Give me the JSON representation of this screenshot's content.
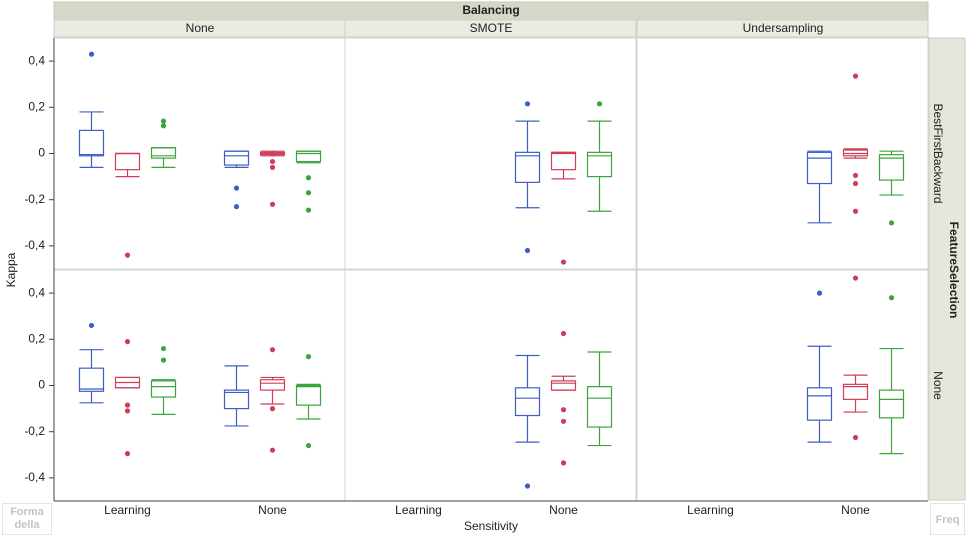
{
  "chart_data": {
    "type": "box",
    "title": "Balancing",
    "columns": [
      "None",
      "SMOTE",
      "Undersampling"
    ],
    "row_title": "FeatureSelection",
    "rows": [
      "BestFirstBackward",
      "None"
    ],
    "y_label": "Kappa",
    "x_label": "Sensitivity",
    "categories": [
      "Learning",
      "None"
    ],
    "corner_labels": [
      "Forma della",
      "Freq"
    ],
    "ylim": [
      -0.5,
      0.5
    ],
    "yticks": [
      {
        "value": 0.4,
        "label": "0,4"
      },
      {
        "value": 0.2,
        "label": "0,2"
      },
      0,
      {
        "value": -0.2,
        "label": "-0,2"
      },
      {
        "value": -0.4,
        "label": "-0,4"
      }
    ],
    "colors": [
      "#3d5fc4",
      "#cf3e57",
      "#3ba53b"
    ],
    "panels": [
      [
        [
          [
            {
              "whislo": -0.06,
              "q1": -0.01,
              "med": -0.005,
              "q3": 0.1,
              "whishi": 0.18,
              "fliers": [
                0.43
              ]
            },
            {
              "whislo": -0.1,
              "q1": -0.07,
              "med": 0.0,
              "q3": 0.0,
              "whishi": 0.0,
              "fliers": [
                -0.44
              ]
            },
            {
              "whislo": -0.06,
              "q1": -0.02,
              "med": -0.01,
              "q3": 0.025,
              "whishi": 0.025,
              "fliers": [
                0.14,
                0.12
              ]
            }
          ],
          [
            {
              "whislo": -0.06,
              "q1": -0.05,
              "med": -0.01,
              "q3": 0.01,
              "whishi": 0.01,
              "fliers": [
                -0.15,
                -0.23
              ]
            },
            {
              "whislo": -0.01,
              "q1": -0.005,
              "med": 0.0,
              "q3": 0.005,
              "whishi": 0.01,
              "fliers": [
                0.0,
                -0.035,
                -0.06,
                -0.22
              ]
            },
            {
              "whislo": -0.04,
              "q1": -0.035,
              "med": 0.0,
              "q3": 0.01,
              "whishi": 0.01,
              "fliers": [
                -0.105,
                -0.17,
                -0.245
              ]
            }
          ]
        ],
        [
          null,
          [
            {
              "whislo": -0.235,
              "q1": -0.125,
              "med": -0.01,
              "q3": 0.005,
              "whishi": 0.14,
              "fliers": [
                0.215,
                -0.42
              ]
            },
            {
              "whislo": -0.11,
              "q1": -0.07,
              "med": 0.0,
              "q3": 0.005,
              "whishi": 0.005,
              "fliers": [
                -0.47
              ]
            },
            {
              "whislo": -0.25,
              "q1": -0.1,
              "med": -0.01,
              "q3": 0.005,
              "whishi": 0.14,
              "fliers": [
                0.215
              ]
            }
          ]
        ],
        [
          null,
          [
            {
              "whislo": -0.3,
              "q1": -0.13,
              "med": -0.02,
              "q3": 0.005,
              "whishi": 0.01
            },
            {
              "whislo": -0.02,
              "q1": -0.01,
              "med": 0.0,
              "q3": 0.015,
              "whishi": 0.02,
              "fliers": [
                0.335,
                -0.095,
                -0.13,
                -0.25
              ]
            },
            {
              "whislo": -0.18,
              "q1": -0.115,
              "med": -0.02,
              "q3": -0.005,
              "whishi": 0.01,
              "fliers": [
                -0.3
              ]
            }
          ]
        ]
      ],
      [
        [
          [
            {
              "whislo": -0.075,
              "q1": -0.025,
              "med": -0.015,
              "q3": 0.075,
              "whishi": 0.155,
              "fliers": [
                0.26
              ]
            },
            {
              "whislo": -0.01,
              "q1": -0.01,
              "med": 0.013,
              "q3": 0.035,
              "whishi": 0.035,
              "fliers": [
                0.19,
                -0.085,
                -0.11,
                -0.295
              ]
            },
            {
              "whislo": -0.125,
              "q1": -0.05,
              "med": -0.005,
              "q3": 0.02,
              "whishi": 0.025,
              "fliers": [
                0.16,
                0.11
              ]
            }
          ],
          [
            {
              "whislo": -0.175,
              "q1": -0.1,
              "med": -0.03,
              "q3": -0.02,
              "whishi": 0.085
            },
            {
              "whislo": -0.08,
              "q1": -0.02,
              "med": 0.01,
              "q3": 0.025,
              "whishi": 0.035,
              "fliers": [
                0.155,
                -0.1,
                -0.28
              ]
            },
            {
              "whislo": -0.145,
              "q1": -0.085,
              "med": -0.005,
              "q3": 0.0,
              "whishi": 0.005,
              "fliers": [
                0.125,
                -0.26
              ]
            }
          ]
        ],
        [
          null,
          [
            {
              "whislo": -0.245,
              "q1": -0.13,
              "med": -0.055,
              "q3": -0.01,
              "whishi": 0.13,
              "fliers": [
                -0.435
              ]
            },
            {
              "whislo": -0.02,
              "q1": -0.02,
              "med": 0.01,
              "q3": 0.02,
              "whishi": 0.04,
              "fliers": [
                0.225,
                -0.105,
                -0.155,
                -0.335
              ]
            },
            {
              "whislo": -0.26,
              "q1": -0.18,
              "med": -0.055,
              "q3": -0.005,
              "whishi": 0.145
            }
          ]
        ],
        [
          null,
          [
            {
              "whislo": -0.245,
              "q1": -0.15,
              "med": -0.045,
              "q3": -0.01,
              "whishi": 0.17,
              "fliers": [
                0.4
              ]
            },
            {
              "whislo": -0.115,
              "q1": -0.06,
              "med": -0.005,
              "q3": 0.005,
              "whishi": 0.045,
              "fliers": [
                0.465,
                -0.225
              ]
            },
            {
              "whislo": -0.295,
              "q1": -0.14,
              "med": -0.06,
              "q3": -0.02,
              "whishi": 0.16,
              "fliers": [
                0.38
              ]
            }
          ]
        ]
      ]
    ]
  }
}
